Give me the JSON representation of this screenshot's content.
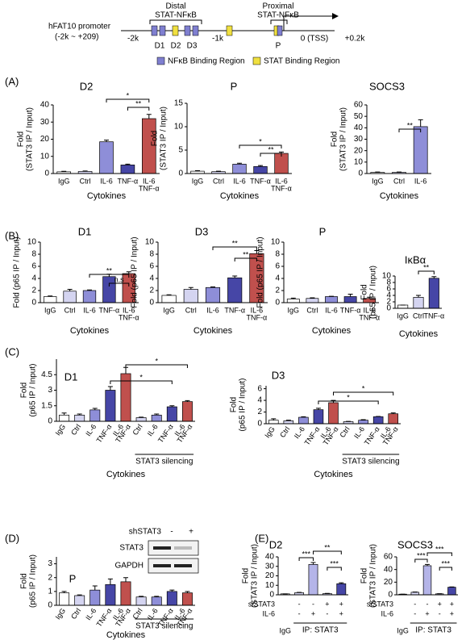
{
  "promoter": {
    "name": "hFAT10 promoter",
    "range": "(-2k ~ +209)",
    "distal": [
      "Distal",
      "STAT-NFκB"
    ],
    "proximal": [
      "Proximal",
      "STAT-NFκB"
    ],
    "sites": [
      "D1",
      "D2",
      "D3",
      "P"
    ],
    "axis": [
      "-2k",
      "-1k",
      "0 (TSS)",
      "+0.2k"
    ],
    "legend": [
      "NFκB Binding Region",
      "STAT Binding Region"
    ]
  },
  "panels": [
    "(A)",
    "(B)",
    "(C)",
    "(D)",
    "(E)"
  ],
  "chart_data": [
    {
      "type": "bar",
      "title": "D2",
      "ylabel": [
        "Fold",
        "(STAT3 IP / Input)"
      ],
      "xlabel": "Cytokines",
      "categories": [
        "IgG",
        "Ctrl",
        "IL-6",
        "TNF-α",
        [
          "IL-6",
          "TNF-α"
        ]
      ],
      "values": [
        1,
        1.2,
        18.5,
        5,
        32
      ],
      "errors": [
        0.3,
        0.3,
        1,
        0.5,
        2.5
      ],
      "colors": [
        "#ffffff",
        "#d4d4f0",
        "#8e8ed8",
        "#4646a6",
        "#c0504d"
      ],
      "ylim": [
        0,
        40
      ],
      "yticks": [
        0,
        10,
        20,
        30,
        40
      ],
      "annotations": [
        "*",
        "**"
      ]
    },
    {
      "type": "bar",
      "title": "P",
      "ylabel": [
        "Fold",
        "(STAT3 IP / Input)"
      ],
      "xlabel": "Cytokines",
      "categories": [
        "IgG",
        "Ctrl",
        "IL-6",
        "TNF-α",
        [
          "IL-6",
          "TNF-α"
        ]
      ],
      "values": [
        0.5,
        0.4,
        2,
        1.5,
        4.3
      ],
      "errors": [
        0.1,
        0.1,
        0.2,
        0.2,
        0.3
      ],
      "colors": [
        "#ffffff",
        "#d4d4f0",
        "#8e8ed8",
        "#4646a6",
        "#c0504d"
      ],
      "ylim": [
        0,
        15
      ],
      "yticks": [
        0,
        5,
        10,
        15
      ],
      "annotations": [
        "*",
        "**"
      ]
    },
    {
      "type": "bar",
      "title": "SOCS3",
      "ylabel": [
        "Fold",
        "(STAT3 IP / Input)"
      ],
      "xlabel": "Cytokines",
      "categories": [
        "IgG",
        "Ctrl",
        "IL-6"
      ],
      "values": [
        1,
        1,
        41
      ],
      "errors": [
        0.3,
        0.3,
        6
      ],
      "colors": [
        "#ffffff",
        "#d4d4f0",
        "#8e8ed8"
      ],
      "ylim": [
        0,
        60
      ],
      "yticks": [
        0,
        10,
        20,
        30,
        40,
        50,
        60
      ],
      "annotations": [
        "**"
      ]
    },
    {
      "type": "bar",
      "title": "D1",
      "ylabel": [
        "Fold (p65 IP / Input)"
      ],
      "xlabel": "Cytokines",
      "categories": [
        "IgG",
        "Ctrl",
        "IL-6",
        "TNF-α",
        [
          "IL-6",
          "TNF-α"
        ]
      ],
      "values": [
        1,
        1.9,
        2,
        4.3,
        4.8
      ],
      "errors": [
        0.1,
        0.3,
        0.1,
        0.4,
        0.3
      ],
      "colors": [
        "#ffffff",
        "#d4d4f0",
        "#8e8ed8",
        "#4646a6",
        "#c0504d"
      ],
      "ylim": [
        0,
        10
      ],
      "yticks": [
        0,
        2,
        4,
        6,
        8,
        10
      ],
      "annotations": [
        "**",
        "n.s"
      ]
    },
    {
      "type": "bar",
      "title": "D3",
      "ylabel": [
        "Fold (p65 IP / Input)"
      ],
      "xlabel": "Cytokines",
      "categories": [
        "IgG",
        "Ctrl",
        "IL-6",
        "TNF-α",
        [
          "IL-6",
          "TNF-α"
        ]
      ],
      "values": [
        1.2,
        2.2,
        2.5,
        4.1,
        8.1
      ],
      "errors": [
        0.1,
        0.3,
        0.1,
        0.3,
        0.5
      ],
      "colors": [
        "#ffffff",
        "#d4d4f0",
        "#8e8ed8",
        "#4646a6",
        "#c0504d"
      ],
      "ylim": [
        0,
        10
      ],
      "yticks": [
        0,
        2,
        4,
        6,
        8,
        10
      ],
      "annotations": [
        "**",
        "**"
      ]
    },
    {
      "type": "bar",
      "title": "P",
      "ylabel": [
        "Fold (p65 IP / Input)"
      ],
      "xlabel": "Cytokines",
      "categories": [
        "IgG",
        "Ctrl",
        "IL-6",
        "TNF-α",
        [
          "IL-6",
          "TNF-α"
        ]
      ],
      "values": [
        0.6,
        0.7,
        1,
        1,
        0.7
      ],
      "errors": [
        0.15,
        0.1,
        0.05,
        0.4,
        0.2
      ],
      "colors": [
        "#ffffff",
        "#d4d4f0",
        "#8e8ed8",
        "#4646a6",
        "#c0504d"
      ],
      "ylim": [
        0,
        10
      ],
      "yticks": [
        0,
        2,
        4,
        6,
        8,
        10
      ],
      "annotations": []
    },
    {
      "type": "bar",
      "title": "IκBα",
      "ylabel": [
        "Fold",
        "(p65 IP / Input)"
      ],
      "xlabel": "Cytokines",
      "categories": [
        "IgG",
        "Ctrl",
        "TNF-α"
      ],
      "values": [
        1,
        3.4,
        9.3
      ],
      "errors": [
        0,
        0.6,
        0.5
      ],
      "colors": [
        "#ffffff",
        "#d4d4f0",
        "#4646a6"
      ],
      "ylim": [
        0,
        10
      ],
      "yticks": [
        0,
        2,
        4,
        6,
        8,
        10
      ],
      "annotations": [
        "**"
      ]
    },
    {
      "type": "bar",
      "title": "D1",
      "ylabel": [
        "Fold",
        "(p65 IP / Input)"
      ],
      "xlabel": "Cytokines",
      "group_label": "STAT3 silencing",
      "categories": [
        "IgG",
        "Ctrl",
        "IL-6",
        "TNF-α",
        [
          "IL-6",
          "TNF-α"
        ],
        "Ctrl",
        "IL-6",
        "TNF-α",
        [
          "IL-6",
          "TNF-α"
        ]
      ],
      "values": [
        0.6,
        0.6,
        1.1,
        3,
        4.6,
        0.35,
        0.6,
        1.4,
        1.9
      ],
      "errors": [
        0.2,
        0.1,
        0.15,
        0.35,
        0.6,
        0.05,
        0.1,
        0.1,
        0.1
      ],
      "colors": [
        "#ffffff",
        "#d4d4f0",
        "#8e8ed8",
        "#4646a6",
        "#c0504d",
        "#d4d4f0",
        "#8e8ed8",
        "#4646a6",
        "#c0504d"
      ],
      "ylim": [
        0,
        6
      ],
      "yticks": [
        0,
        1.5,
        3,
        4.5
      ],
      "annotations": [
        "*",
        "*"
      ]
    },
    {
      "type": "bar",
      "title": "D3",
      "ylabel": [
        "Fold",
        "(p65 IP / Input)"
      ],
      "xlabel": "Cytokines",
      "group_label": "STAT3 silencing",
      "categories": [
        "IgG",
        "Ctrl",
        "IL-6",
        "TNF-α",
        [
          "IL-6",
          "TNF-α"
        ],
        "Ctrl",
        "IL-6",
        "TNF-α",
        [
          "IL-6",
          "TNF-α"
        ]
      ],
      "values": [
        0.6,
        0.5,
        1.1,
        2.4,
        3.6,
        0.35,
        0.6,
        1.2,
        1.7
      ],
      "errors": [
        0.25,
        0.1,
        0.1,
        0.25,
        0.4,
        0.05,
        0.1,
        0.05,
        0.15
      ],
      "colors": [
        "#ffffff",
        "#d4d4f0",
        "#8e8ed8",
        "#4646a6",
        "#c0504d",
        "#d4d4f0",
        "#8e8ed8",
        "#4646a6",
        "#c0504d"
      ],
      "ylim": [
        0,
        6.5
      ],
      "yticks": [
        0,
        2,
        4,
        6
      ],
      "annotations": [
        "*",
        "*"
      ]
    },
    {
      "type": "bar",
      "title": "P",
      "ylabel": [
        "Fold",
        "(p65 IP / Input)"
      ],
      "xlabel": "Cytokines",
      "group_label": "STAT3 silencing",
      "categories": [
        "IgG",
        "Ctrl",
        "IL-6",
        "TNF-α",
        [
          "IL-6",
          "TNF-α"
        ],
        "Ctrl",
        "IL-6",
        "TNF-α",
        [
          "IL-6",
          "TNF-α"
        ]
      ],
      "values": [
        0.9,
        0.7,
        1.1,
        1.5,
        1.7,
        0.6,
        0.6,
        1,
        0.9
      ],
      "errors": [
        0.1,
        0.05,
        0.3,
        0.4,
        0.3,
        0.05,
        0.05,
        0.1,
        0.1
      ],
      "colors": [
        "#ffffff",
        "#d4d4f0",
        "#8e8ed8",
        "#4646a6",
        "#c0504d",
        "#d4d4f0",
        "#8e8ed8",
        "#4646a6",
        "#c0504d"
      ],
      "ylim": [
        0,
        3.5
      ],
      "yticks": [
        0,
        1,
        2,
        3
      ],
      "annotations": [],
      "blot": {
        "title": "shSTAT3",
        "lanes": [
          "-",
          "+"
        ],
        "rows": [
          "STAT3",
          "GAPDH"
        ]
      }
    },
    {
      "type": "bar",
      "title": "D2",
      "ylabel": [
        "Fold",
        "(STAT3 IP / Input)"
      ],
      "group_label": "IP: STAT3",
      "categories": [
        "IgG",
        null,
        null,
        null,
        null
      ],
      "values": [
        1,
        2.2,
        32,
        1.2,
        11.7
      ],
      "errors": [
        0,
        0.4,
        2,
        0.3,
        1
      ],
      "conditions": [
        {
          "name": "siSTAT3",
          "signs": [
            null,
            "-",
            "-",
            "+",
            "+"
          ]
        },
        {
          "name": "IL-6",
          "signs": [
            null,
            "-",
            "+",
            "-",
            "+"
          ]
        }
      ],
      "colors": [
        "#ffffff",
        "#d4d4f0",
        "#b4b4e8",
        "#d4d4f0",
        "#4646a6"
      ],
      "ylim": [
        0,
        40
      ],
      "yticks": [
        0,
        10,
        20,
        30,
        40
      ],
      "annotations": [
        "***",
        "**",
        "***"
      ]
    },
    {
      "type": "bar",
      "title": "SOCS3",
      "ylabel": [
        "Fold",
        "(STAT3 IP / Input)"
      ],
      "group_label": "IP: STAT3",
      "categories": [
        "IgG",
        null,
        null,
        null,
        null
      ],
      "values": [
        1,
        4,
        46,
        1.5,
        12
      ],
      "errors": [
        0,
        0.4,
        2,
        0.3,
        0.5
      ],
      "conditions": [
        {
          "name": "siSTAT3",
          "signs": [
            null,
            "-",
            "-",
            "+",
            "+"
          ]
        },
        {
          "name": "IL-6",
          "signs": [
            null,
            "-",
            "+",
            "-",
            "+"
          ]
        }
      ],
      "colors": [
        "#ffffff",
        "#d4d4f0",
        "#b4b4e8",
        "#d4d4f0",
        "#4646a6"
      ],
      "ylim": [
        0,
        60
      ],
      "yticks": [
        0,
        20,
        40,
        60
      ],
      "annotations": [
        "***",
        "***",
        "***"
      ]
    }
  ]
}
